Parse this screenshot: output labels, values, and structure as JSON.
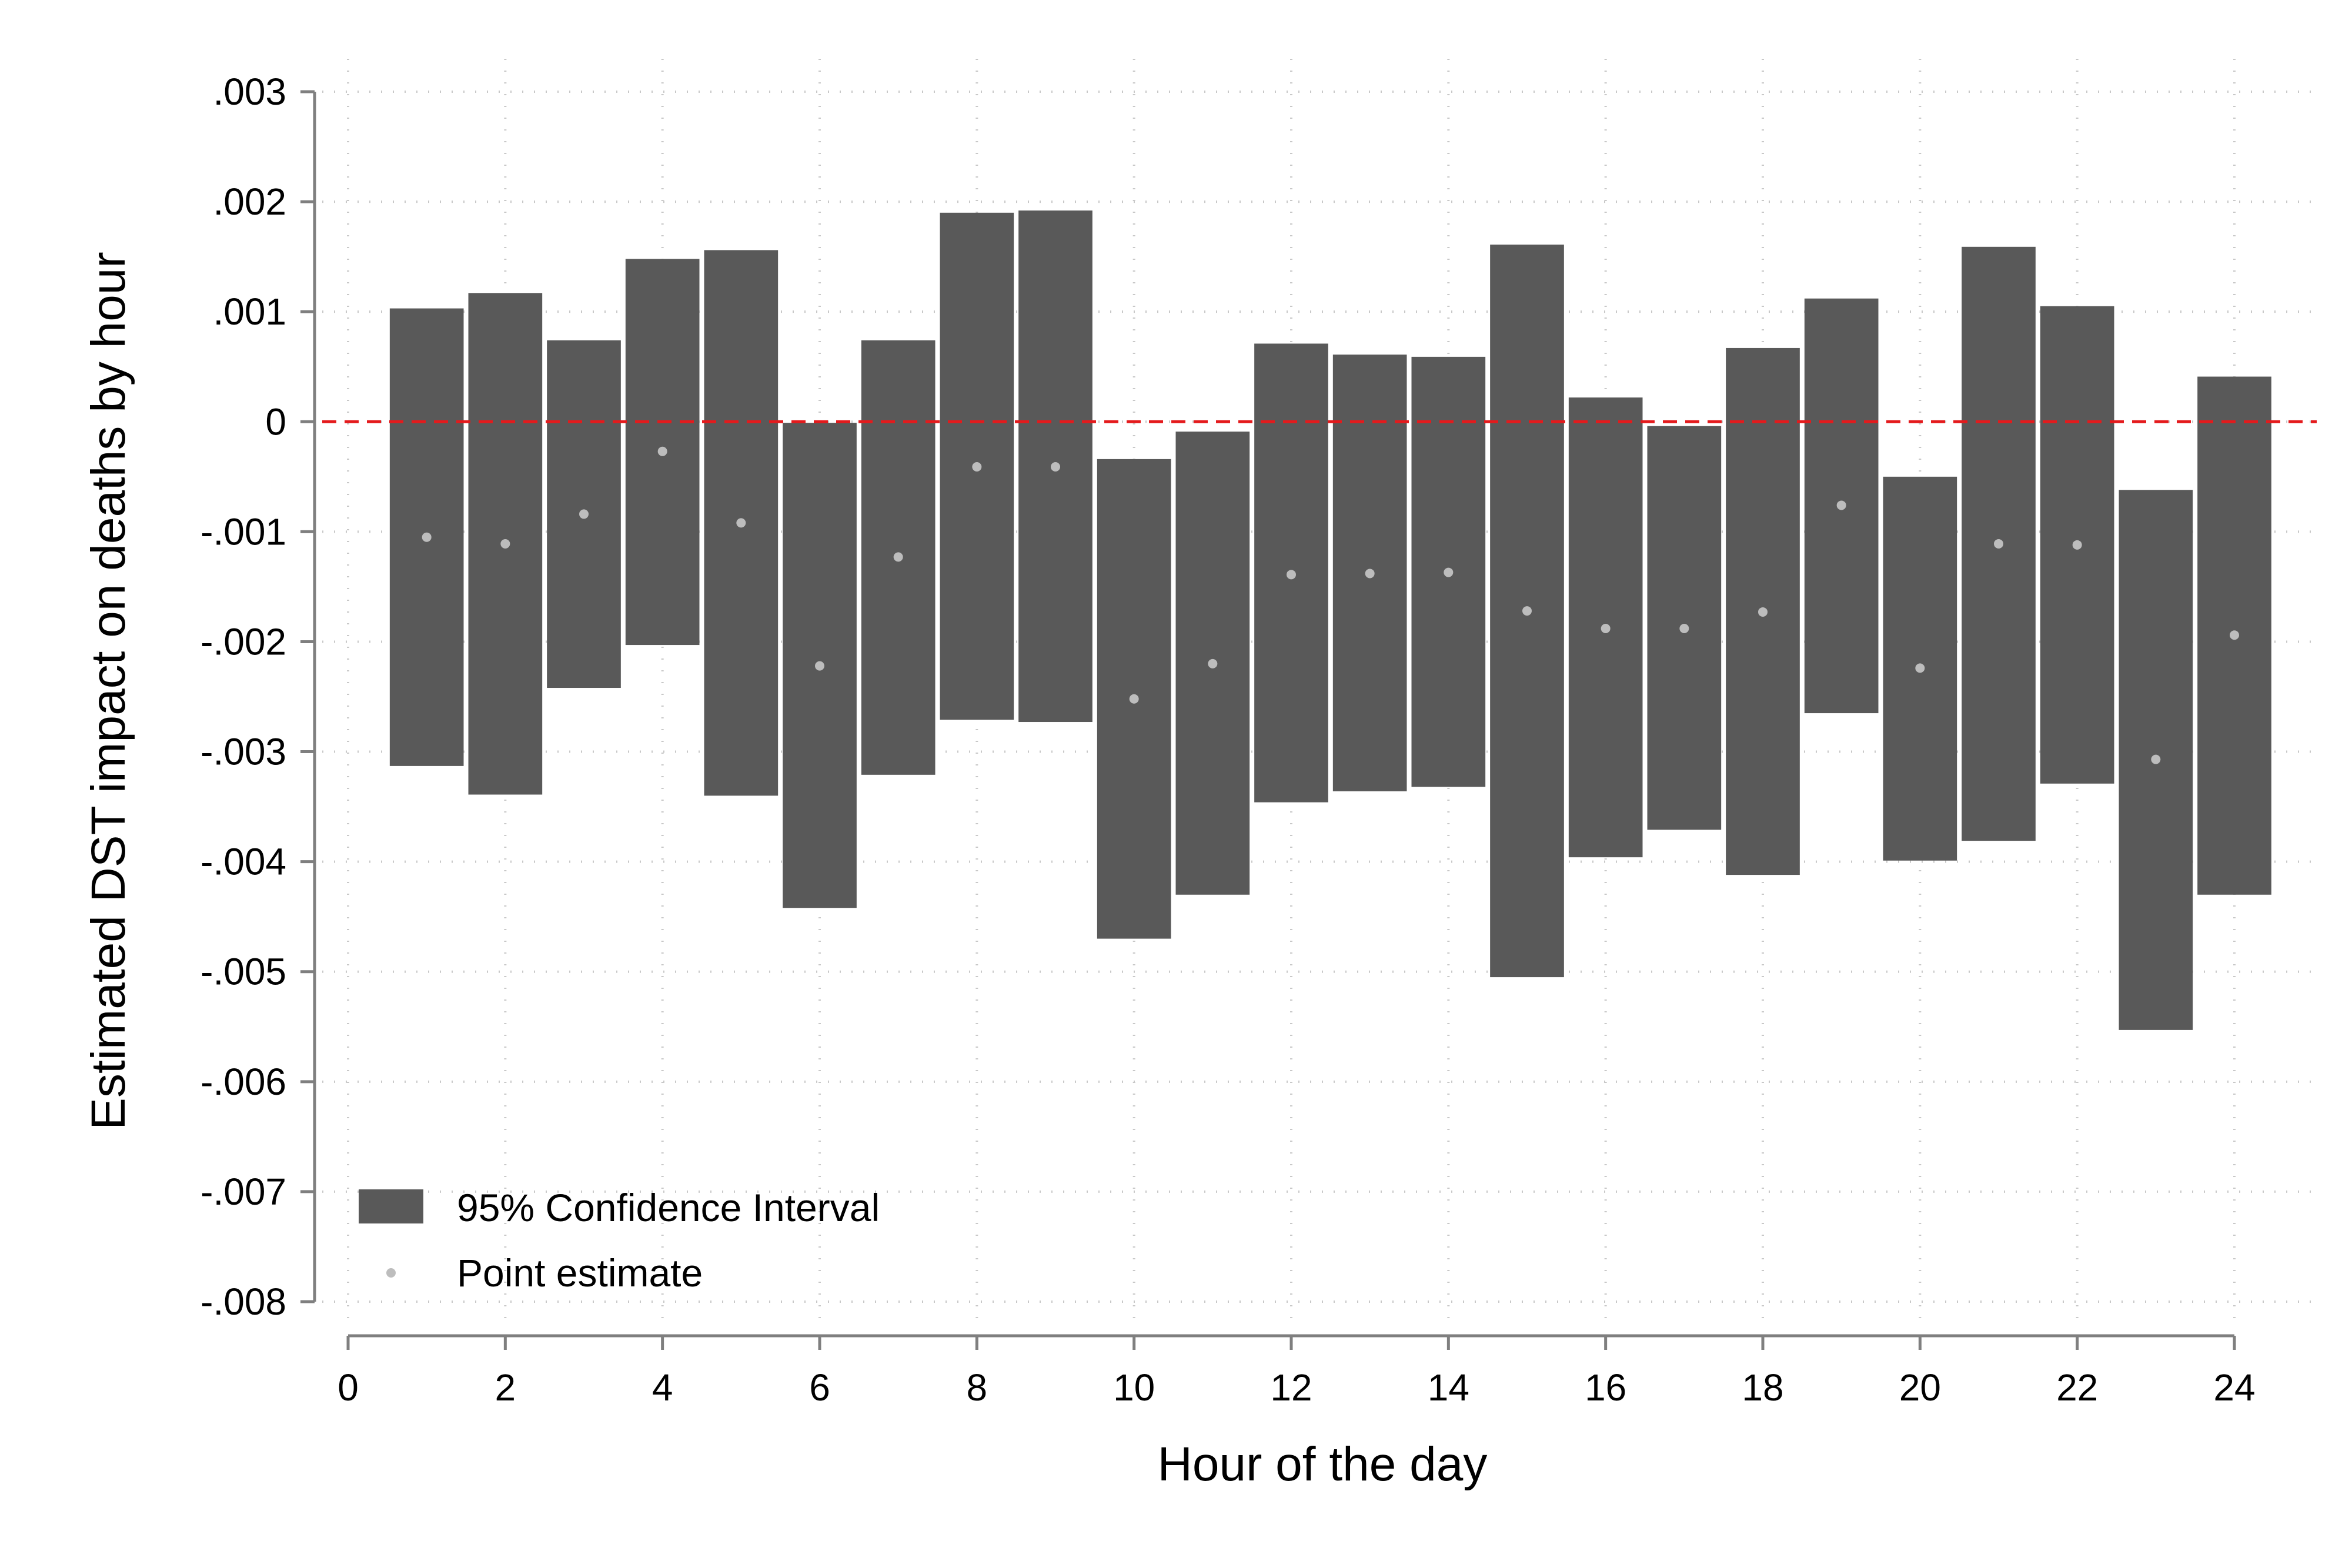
{
  "chart_data": {
    "type": "bar",
    "subtype": "range-bar-with-points",
    "xlabel": "Hour of the day",
    "ylabel": "Estimated DST impact on deaths by hour",
    "xlim": [
      0,
      24
    ],
    "ylim": [
      -0.008,
      0.003
    ],
    "x_ticks": [
      0,
      2,
      4,
      6,
      8,
      10,
      12,
      14,
      16,
      18,
      20,
      22,
      24
    ],
    "x_tick_labels": [
      "0",
      "2",
      "4",
      "6",
      "8",
      "10",
      "12",
      "14",
      "16",
      "18",
      "20",
      "22",
      "24"
    ],
    "y_ticks": [
      0.003,
      0.002,
      0.001,
      0,
      -0.001,
      -0.002,
      -0.003,
      -0.004,
      -0.005,
      -0.006,
      -0.007,
      -0.008
    ],
    "y_tick_labels": [
      ".003",
      ".002",
      ".001",
      "0",
      "-.001",
      "-.002",
      "-.003",
      "-.004",
      "-.005",
      "-.006",
      "-.007",
      "-.008"
    ],
    "grid": true,
    "reference_line": {
      "y": 0,
      "style": "dashed",
      "color": "#e41a1c"
    },
    "hours": [
      1,
      2,
      3,
      4,
      5,
      6,
      7,
      8,
      9,
      10,
      11,
      12,
      13,
      14,
      15,
      16,
      17,
      18,
      19,
      20,
      21,
      22,
      23,
      24
    ],
    "series": [
      {
        "name": "95% Confidence Interval",
        "kind": "range-bar",
        "color": "#595959",
        "low": [
          -0.00313,
          -0.00339,
          -0.00242,
          -0.00203,
          -0.0034,
          -0.00442,
          -0.00321,
          -0.00271,
          -0.00273,
          -0.0047,
          -0.0043,
          -0.00346,
          -0.00336,
          -0.00332,
          -0.00505,
          -0.00396,
          -0.00371,
          -0.00412,
          -0.00265,
          -0.00399,
          -0.00381,
          -0.00329,
          -0.00553,
          -0.0043
        ],
        "high": [
          0.00103,
          0.00117,
          0.00074,
          0.00148,
          0.00156,
          -1e-05,
          0.00074,
          0.0019,
          0.00192,
          -0.00034,
          -9e-05,
          0.00071,
          0.00061,
          0.00059,
          0.00161,
          0.00022,
          -4e-05,
          0.00067,
          0.00112,
          -0.0005,
          0.00159,
          0.00105,
          -0.00062,
          0.00041
        ]
      },
      {
        "name": "Point estimate",
        "kind": "point",
        "color": "#bdbdbd",
        "values": [
          -0.00105,
          -0.00111,
          -0.00084,
          -0.00027,
          -0.00092,
          -0.00222,
          -0.00123,
          -0.00041,
          -0.00041,
          -0.00252,
          -0.0022,
          -0.00139,
          -0.00138,
          -0.00137,
          -0.00172,
          -0.00188,
          -0.00188,
          -0.00173,
          -0.00076,
          -0.00224,
          -0.00111,
          -0.00112,
          -0.00307,
          -0.00194
        ]
      }
    ],
    "legend": {
      "placement": "bottom-left",
      "entries": [
        "95% Confidence Interval",
        "Point estimate"
      ]
    }
  }
}
